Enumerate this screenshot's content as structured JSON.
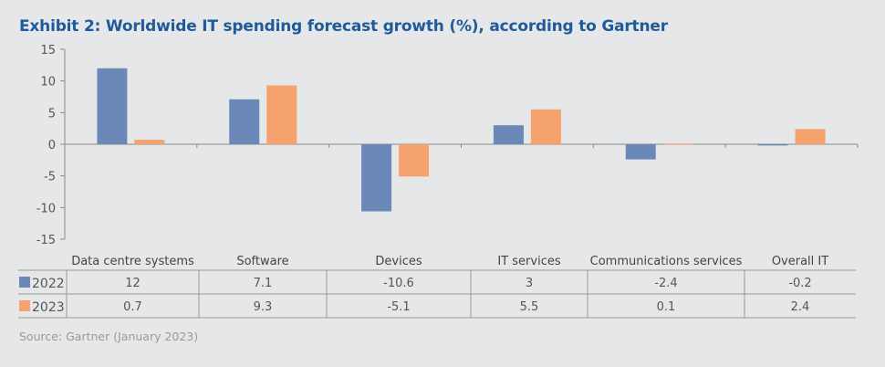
{
  "title": "Exhibit 2: Worldwide IT spending forecast growth (%), according to Gartner",
  "source": "Source: Gartner (January 2023)",
  "chart_data": {
    "type": "bar",
    "title": "Exhibit 2: Worldwide IT spending forecast growth (%), according to Gartner",
    "categories": [
      "Data centre systems",
      "Software",
      "Devices",
      "IT services",
      "Communications services",
      "Overall IT"
    ],
    "series": [
      {
        "name": "2022",
        "color": "#6a89b9",
        "values": [
          12,
          7.1,
          -10.6,
          3,
          -2.4,
          -0.2
        ],
        "labels": [
          "12",
          "7.1",
          "-10.6",
          "3",
          "-2.4",
          "-0.2"
        ]
      },
      {
        "name": "2023",
        "color": "#f5a26f",
        "values": [
          0.7,
          9.3,
          -5.1,
          5.5,
          0.1,
          2.4
        ],
        "labels": [
          "0.7",
          "9.3",
          "-5.1",
          "5.5",
          "0.1",
          "2.4"
        ]
      }
    ],
    "ylim": [
      -15,
      15
    ],
    "yticks": [
      15,
      10,
      5,
      0,
      -5,
      -10,
      -15
    ],
    "grid": false,
    "legend": "data-table"
  }
}
